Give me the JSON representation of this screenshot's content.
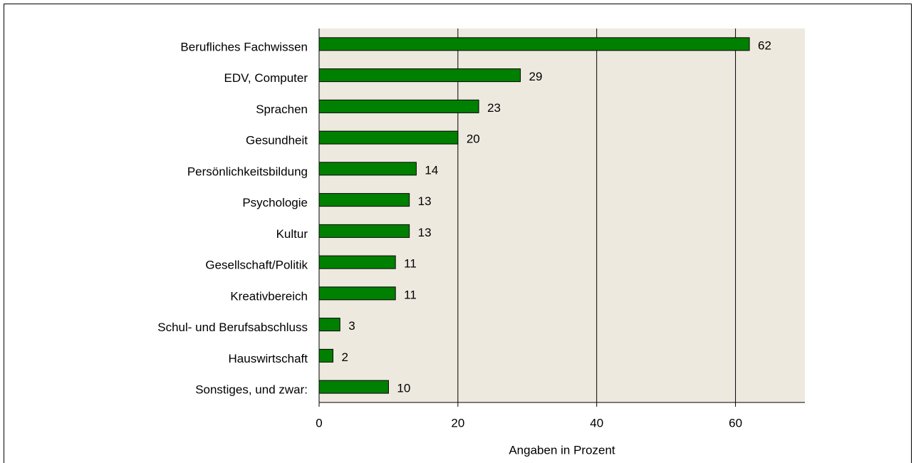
{
  "chart_data": {
    "type": "barh",
    "categories": [
      "Berufliches Fachwissen",
      "EDV, Computer",
      "Sprachen",
      "Gesundheit",
      "Persönlichkeitsbildung",
      "Psychologie",
      "Kultur",
      "Gesellschaft/Politik",
      "Kreativbereich",
      "Schul- und Berufsabschluss",
      "Hauswirtschaft",
      "Sonstiges, und zwar:"
    ],
    "values": [
      62,
      29,
      23,
      20,
      14,
      13,
      13,
      11,
      11,
      3,
      2,
      10
    ],
    "color": "#008000",
    "x_label": "Angaben in Prozent",
    "xlim": [
      0,
      70
    ],
    "xticks": [
      0,
      20,
      40,
      60
    ],
    "grid": true
  }
}
